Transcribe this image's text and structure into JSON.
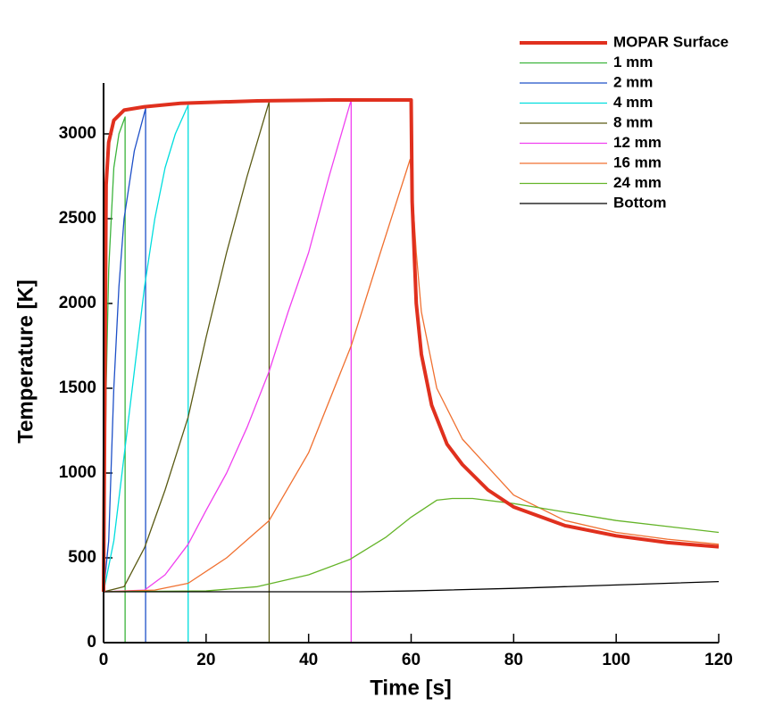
{
  "chart_data": {
    "type": "line",
    "xlabel": "Time [s]",
    "ylabel": "Temperature [K]",
    "xlim": [
      0,
      120
    ],
    "xticks": [
      0,
      20,
      40,
      60,
      80,
      100,
      120
    ],
    "ylim": [
      0,
      3300
    ],
    "yticks": [
      0,
      500,
      1000,
      1500,
      2000,
      2500,
      3000
    ],
    "legend": "upper right",
    "series": [
      {
        "name": "MOPAR Surface",
        "color": "#e0301e",
        "width": 4,
        "x": [
          0,
          0.5,
          1,
          2,
          4,
          8,
          15,
          30,
          45,
          60,
          60.2,
          61,
          62,
          64,
          67,
          70,
          75,
          80,
          90,
          100,
          110,
          120
        ],
        "values": [
          300,
          2700,
          2950,
          3080,
          3140,
          3160,
          3180,
          3195,
          3200,
          3200,
          2600,
          2000,
          1700,
          1400,
          1170,
          1050,
          900,
          800,
          690,
          630,
          590,
          565
        ]
      },
      {
        "name": "1 mm",
        "color": "#3cb43c",
        "width": 1.3,
        "x": [
          0,
          0.5,
          1,
          2,
          3,
          4.2,
          4.2
        ],
        "values": [
          300,
          1500,
          2200,
          2800,
          3000,
          3100,
          0
        ]
      },
      {
        "name": "2 mm",
        "color": "#1e50c8",
        "width": 1.3,
        "x": [
          0,
          1,
          2,
          3,
          4,
          6,
          8.2,
          8.2
        ],
        "values": [
          300,
          600,
          1500,
          2100,
          2500,
          2900,
          3150,
          0
        ]
      },
      {
        "name": "4 mm",
        "color": "#00dede",
        "width": 1.3,
        "x": [
          0,
          2,
          4,
          6,
          8,
          10,
          12,
          14,
          16.5,
          16.5
        ],
        "values": [
          300,
          600,
          1100,
          1600,
          2100,
          2500,
          2800,
          3000,
          3170,
          0
        ]
      },
      {
        "name": "8 mm",
        "color": "#5a5a14",
        "width": 1.3,
        "x": [
          0,
          4,
          8,
          12,
          16.5,
          20,
          24,
          28,
          32.3,
          32.3
        ],
        "values": [
          300,
          330,
          560,
          900,
          1330,
          1800,
          2300,
          2750,
          3190,
          0
        ]
      },
      {
        "name": "12 mm",
        "color": "#f040f0",
        "width": 1.3,
        "x": [
          0,
          8,
          12,
          16.5,
          20,
          24,
          28,
          32.3,
          36,
          40,
          44,
          48.3,
          48.3
        ],
        "values": [
          300,
          310,
          400,
          580,
          780,
          1000,
          1270,
          1600,
          1950,
          2300,
          2750,
          3200,
          0
        ]
      },
      {
        "name": "16 mm",
        "color": "#f07030",
        "width": 1.3,
        "x": [
          0,
          10,
          16.5,
          24,
          32.3,
          40,
          48.3,
          54,
          59.8,
          61,
          62,
          65,
          70,
          80,
          90,
          100,
          110,
          120
        ],
        "values": [
          300,
          310,
          350,
          500,
          720,
          1120,
          1750,
          2300,
          2850,
          2300,
          1950,
          1500,
          1200,
          870,
          720,
          650,
          610,
          580
        ]
      },
      {
        "name": "24 mm",
        "color": "#64b428",
        "width": 1.3,
        "x": [
          0,
          20,
          30,
          40,
          48,
          55,
          60,
          65,
          68,
          72,
          80,
          100,
          120
        ],
        "values": [
          300,
          305,
          330,
          400,
          490,
          620,
          740,
          840,
          850,
          850,
          820,
          720,
          650
        ]
      },
      {
        "name": "Bottom",
        "color": "#000000",
        "width": 1.3,
        "x": [
          0,
          50,
          60,
          80,
          100,
          120
        ],
        "values": [
          300,
          300,
          305,
          320,
          340,
          360
        ]
      }
    ]
  }
}
